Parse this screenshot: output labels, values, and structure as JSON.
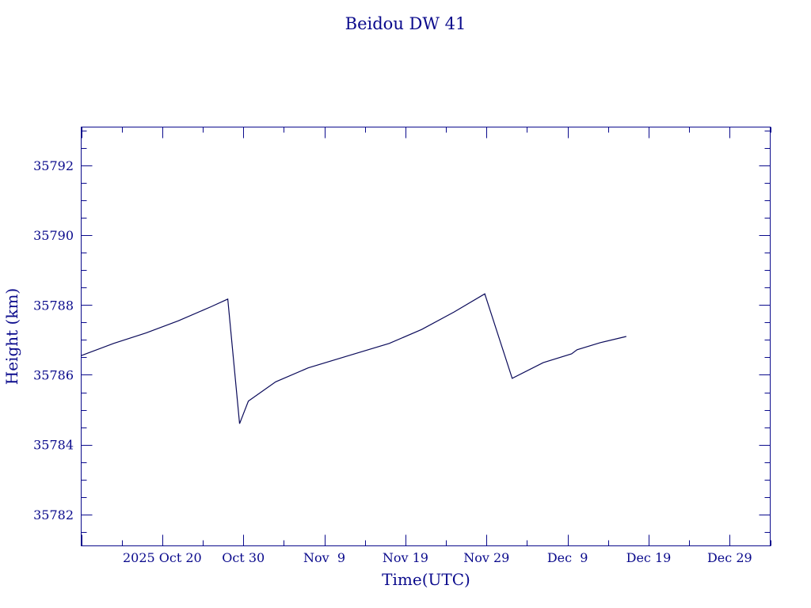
{
  "chart_data": {
    "type": "line",
    "title": "Beidou DW 41",
    "xlabel": "Time(UTC)",
    "ylabel": "Height (km)",
    "xlim": [
      "2025-10-10",
      "2026-01-03"
    ],
    "ylim": [
      35781.1,
      35793.1
    ],
    "x_ticks": [
      {
        "date": "2025-10-20",
        "label": "2025 Oct 20"
      },
      {
        "date": "2025-10-30",
        "label": "Oct 30"
      },
      {
        "date": "2025-11-09",
        "label": "Nov  9"
      },
      {
        "date": "2025-11-19",
        "label": "Nov 19"
      },
      {
        "date": "2025-11-29",
        "label": "Nov 29"
      },
      {
        "date": "2025-12-09",
        "label": "Dec  9"
      },
      {
        "date": "2025-12-19",
        "label": "Dec 19"
      },
      {
        "date": "2025-12-29",
        "label": "Dec 29"
      }
    ],
    "y_ticks": [
      35782,
      35784,
      35786,
      35788,
      35790,
      35792
    ],
    "grid": false,
    "series": [
      {
        "color": "#0a0a5a",
        "points": [
          [
            "2025-10-10T00:00",
            35786.55
          ],
          [
            "2025-10-14T00:00",
            35786.9
          ],
          [
            "2025-10-18T00:00",
            35787.2
          ],
          [
            "2025-10-22T00:00",
            35787.55
          ],
          [
            "2025-10-26T00:00",
            35787.95
          ],
          [
            "2025-10-28T02:00",
            35788.17
          ],
          [
            "2025-10-29T13:00",
            35784.6
          ],
          [
            "2025-10-30T15:00",
            35785.25
          ],
          [
            "2025-11-03T00:00",
            35785.8
          ],
          [
            "2025-11-07T00:00",
            35786.2
          ],
          [
            "2025-11-12T00:00",
            35786.55
          ],
          [
            "2025-11-17T00:00",
            35786.9
          ],
          [
            "2025-11-21T00:00",
            35787.3
          ],
          [
            "2025-11-25T00:00",
            35787.8
          ],
          [
            "2025-11-28T19:00",
            35788.32
          ],
          [
            "2025-12-02T04:00",
            35785.9
          ],
          [
            "2025-12-06T00:00",
            35786.35
          ],
          [
            "2025-12-09T12:00",
            35786.6
          ],
          [
            "2025-12-10T04:00",
            35786.72
          ],
          [
            "2025-12-13T00:00",
            35786.92
          ],
          [
            "2025-12-16T06:00",
            35787.1
          ]
        ]
      }
    ]
  }
}
